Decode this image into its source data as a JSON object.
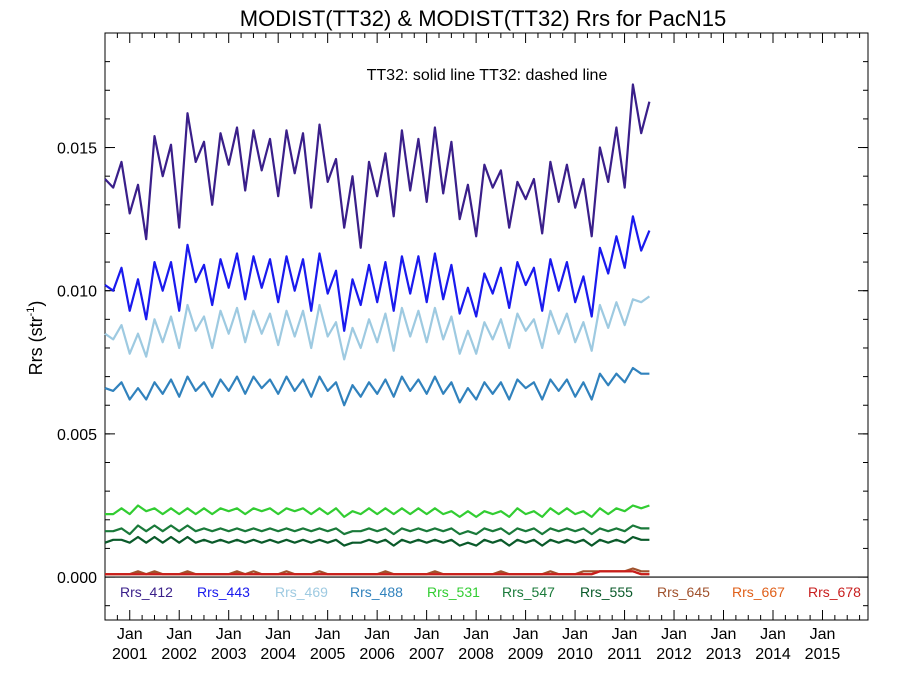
{
  "chart_data": {
    "type": "line",
    "title": "MODIST(TT32) & MODIST(TT32)  Rrs for PacN15",
    "annotation": "TT32: solid line   TT32: dashed line",
    "ylabel": "Rrs (str",
    "ylabel_sup": "-1",
    "ylabel_close": ")",
    "xlabel": "",
    "xlim": [
      2000.5,
      2015.92
    ],
    "ylim": [
      -0.0015,
      0.019
    ],
    "y_ticks": [
      0.0,
      0.005,
      0.01,
      0.015
    ],
    "y_tick_labels": [
      "0.000",
      "0.005",
      "0.010",
      "0.015"
    ],
    "x_tick_top": "Jan",
    "x_ticks": [
      2001,
      2002,
      2003,
      2004,
      2005,
      2006,
      2007,
      2008,
      2009,
      2010,
      2011,
      2012,
      2013,
      2014,
      2015
    ],
    "x_tick_labels": [
      "2001",
      "2002",
      "2003",
      "2004",
      "2005",
      "2006",
      "2007",
      "2008",
      "2009",
      "2010",
      "2011",
      "2012",
      "2013",
      "2014",
      "2015"
    ],
    "series": [
      {
        "name": "Rrs_412",
        "color": "#3a1f8a",
        "x_start": 2000.5,
        "x_step": 0.1667,
        "values": [
          0.0139,
          0.0136,
          0.0145,
          0.0127,
          0.0137,
          0.0118,
          0.0154,
          0.014,
          0.0151,
          0.0122,
          0.0162,
          0.0145,
          0.0152,
          0.013,
          0.0155,
          0.0144,
          0.0157,
          0.0135,
          0.0156,
          0.0142,
          0.0153,
          0.0133,
          0.0156,
          0.0141,
          0.0155,
          0.0129,
          0.0158,
          0.0138,
          0.0146,
          0.0122,
          0.014,
          0.0115,
          0.0145,
          0.0133,
          0.0148,
          0.0126,
          0.0156,
          0.0135,
          0.0153,
          0.0131,
          0.0157,
          0.0134,
          0.0152,
          0.0125,
          0.0137,
          0.0119,
          0.0144,
          0.0136,
          0.0142,
          0.0122,
          0.0138,
          0.0132,
          0.0139,
          0.012,
          0.0145,
          0.0131,
          0.0144,
          0.0129,
          0.0139,
          0.0119,
          0.015,
          0.0138,
          0.0157,
          0.0136,
          0.0172,
          0.0155,
          0.0166
        ]
      },
      {
        "name": "Rrs_443",
        "color": "#1a1aee",
        "x_start": 2000.5,
        "x_step": 0.1667,
        "values": [
          0.0102,
          0.01,
          0.0108,
          0.0093,
          0.0104,
          0.009,
          0.011,
          0.01,
          0.011,
          0.0093,
          0.0116,
          0.0103,
          0.0109,
          0.0095,
          0.0111,
          0.0101,
          0.0113,
          0.0097,
          0.0112,
          0.0101,
          0.0111,
          0.0096,
          0.0112,
          0.01,
          0.0111,
          0.0093,
          0.0113,
          0.0099,
          0.0107,
          0.0086,
          0.0104,
          0.0095,
          0.0109,
          0.0096,
          0.011,
          0.0093,
          0.0112,
          0.0099,
          0.0112,
          0.0096,
          0.0113,
          0.0097,
          0.0109,
          0.0092,
          0.0101,
          0.0091,
          0.0106,
          0.0099,
          0.0108,
          0.0094,
          0.011,
          0.0102,
          0.0108,
          0.0093,
          0.0111,
          0.01,
          0.011,
          0.0096,
          0.0105,
          0.0091,
          0.0115,
          0.0106,
          0.0119,
          0.0108,
          0.0126,
          0.0114,
          0.0121
        ]
      },
      {
        "name": "Rrs_469",
        "color": "#9ecae1",
        "x_start": 2000.5,
        "x_step": 0.1667,
        "values": [
          0.0085,
          0.0083,
          0.0088,
          0.0078,
          0.0085,
          0.0077,
          0.009,
          0.0082,
          0.0091,
          0.008,
          0.0095,
          0.0086,
          0.0091,
          0.008,
          0.0093,
          0.0085,
          0.0094,
          0.0082,
          0.0093,
          0.0085,
          0.0092,
          0.0081,
          0.0093,
          0.0084,
          0.0093,
          0.008,
          0.0095,
          0.0084,
          0.0089,
          0.0076,
          0.0087,
          0.008,
          0.009,
          0.0082,
          0.0092,
          0.0079,
          0.0094,
          0.0084,
          0.0093,
          0.0082,
          0.0094,
          0.0083,
          0.0091,
          0.0078,
          0.0086,
          0.0078,
          0.0089,
          0.0083,
          0.009,
          0.008,
          0.0092,
          0.0086,
          0.009,
          0.008,
          0.0093,
          0.0085,
          0.0092,
          0.0082,
          0.0089,
          0.0079,
          0.0095,
          0.0087,
          0.0096,
          0.0088,
          0.0097,
          0.0096,
          0.0098
        ]
      },
      {
        "name": "Rrs_488",
        "color": "#3182bd",
        "x_start": 2000.5,
        "x_step": 0.1667,
        "values": [
          0.0066,
          0.0065,
          0.0068,
          0.0062,
          0.0066,
          0.0062,
          0.0068,
          0.0064,
          0.0069,
          0.0063,
          0.007,
          0.0065,
          0.0068,
          0.0063,
          0.0069,
          0.0065,
          0.007,
          0.0064,
          0.007,
          0.0066,
          0.0069,
          0.0064,
          0.007,
          0.0065,
          0.0069,
          0.0063,
          0.007,
          0.0065,
          0.0068,
          0.006,
          0.0067,
          0.0063,
          0.0068,
          0.0064,
          0.0069,
          0.0063,
          0.007,
          0.0065,
          0.0069,
          0.0064,
          0.007,
          0.0064,
          0.0068,
          0.0061,
          0.0066,
          0.0062,
          0.0068,
          0.0064,
          0.0068,
          0.0062,
          0.0069,
          0.0066,
          0.0068,
          0.0062,
          0.0069,
          0.0065,
          0.0069,
          0.0063,
          0.0068,
          0.0062,
          0.0071,
          0.0067,
          0.0071,
          0.0068,
          0.0073,
          0.0071,
          0.0071
        ]
      },
      {
        "name": "Rrs_531",
        "color": "#32cd32",
        "x_start": 2000.5,
        "x_step": 0.1667,
        "values": [
          0.0022,
          0.0022,
          0.0024,
          0.0022,
          0.0025,
          0.0023,
          0.0024,
          0.0022,
          0.0024,
          0.0022,
          0.0024,
          0.0022,
          0.0024,
          0.0022,
          0.0024,
          0.0023,
          0.0024,
          0.0022,
          0.0024,
          0.0023,
          0.0024,
          0.0022,
          0.0024,
          0.0023,
          0.0024,
          0.0022,
          0.0024,
          0.0022,
          0.0024,
          0.0021,
          0.0023,
          0.0022,
          0.0024,
          0.0022,
          0.0024,
          0.0022,
          0.0024,
          0.0022,
          0.0024,
          0.0022,
          0.0024,
          0.0022,
          0.0023,
          0.0021,
          0.0023,
          0.0021,
          0.0023,
          0.0022,
          0.0023,
          0.0021,
          0.0024,
          0.0022,
          0.0023,
          0.0021,
          0.0024,
          0.0022,
          0.0024,
          0.0022,
          0.0023,
          0.0021,
          0.0024,
          0.0022,
          0.0024,
          0.0023,
          0.0025,
          0.0024,
          0.0025
        ]
      },
      {
        "name": "Rrs_547",
        "color": "#1a7a3a",
        "x_start": 2000.5,
        "x_step": 0.1667,
        "values": [
          0.0016,
          0.0016,
          0.0017,
          0.0015,
          0.0018,
          0.0016,
          0.0018,
          0.0016,
          0.0018,
          0.0016,
          0.0018,
          0.0016,
          0.0017,
          0.0016,
          0.0017,
          0.0016,
          0.0017,
          0.0016,
          0.0017,
          0.0016,
          0.0017,
          0.0016,
          0.0017,
          0.0016,
          0.0017,
          0.0016,
          0.0017,
          0.0016,
          0.0017,
          0.0015,
          0.0016,
          0.0016,
          0.0017,
          0.0016,
          0.0017,
          0.0015,
          0.0017,
          0.0016,
          0.0017,
          0.0016,
          0.0017,
          0.0016,
          0.0017,
          0.0015,
          0.0016,
          0.0015,
          0.0017,
          0.0016,
          0.0017,
          0.0015,
          0.0017,
          0.0016,
          0.0017,
          0.0015,
          0.0017,
          0.0016,
          0.0017,
          0.0016,
          0.0017,
          0.0015,
          0.0017,
          0.0016,
          0.0017,
          0.0016,
          0.0018,
          0.0017,
          0.0017
        ]
      },
      {
        "name": "Rrs_555",
        "color": "#0a5a2a",
        "x_start": 2000.5,
        "x_step": 0.1667,
        "values": [
          0.0012,
          0.0013,
          0.0013,
          0.0012,
          0.0014,
          0.0012,
          0.0014,
          0.0012,
          0.0014,
          0.0012,
          0.0014,
          0.0012,
          0.0013,
          0.0012,
          0.0013,
          0.0012,
          0.0013,
          0.0012,
          0.0013,
          0.0012,
          0.0013,
          0.0012,
          0.0013,
          0.0012,
          0.0013,
          0.0012,
          0.0013,
          0.0012,
          0.0013,
          0.0011,
          0.0012,
          0.0012,
          0.0013,
          0.0012,
          0.0013,
          0.0011,
          0.0013,
          0.0012,
          0.0013,
          0.0012,
          0.0013,
          0.0012,
          0.0013,
          0.0011,
          0.0012,
          0.0011,
          0.0013,
          0.0012,
          0.0013,
          0.0011,
          0.0013,
          0.0012,
          0.0013,
          0.0011,
          0.0013,
          0.0012,
          0.0013,
          0.0012,
          0.0013,
          0.0011,
          0.0013,
          0.0012,
          0.0013,
          0.0012,
          0.0014,
          0.0013,
          0.0013
        ]
      },
      {
        "name": "Rrs_645",
        "color": "#a0522d",
        "x_start": 2000.5,
        "x_step": 0.1667,
        "values": [
          0.0001,
          0.0001,
          0.0001,
          0.0001,
          0.0002,
          0.0001,
          0.0002,
          0.0001,
          0.0001,
          0.0001,
          0.0002,
          0.0001,
          0.0001,
          0.0001,
          0.0001,
          0.0001,
          0.0002,
          0.0001,
          0.0002,
          0.0001,
          0.0001,
          0.0001,
          0.0002,
          0.0001,
          0.0001,
          0.0001,
          0.0002,
          0.0001,
          0.0001,
          0.0001,
          0.0001,
          0.0001,
          0.0001,
          0.0001,
          0.0002,
          0.0001,
          0.0001,
          0.0001,
          0.0001,
          0.0001,
          0.0002,
          0.0001,
          0.0001,
          0.0001,
          0.0001,
          0.0001,
          0.0001,
          0.0001,
          0.0002,
          0.0001,
          0.0001,
          0.0001,
          0.0001,
          0.0001,
          0.0002,
          0.0001,
          0.0001,
          0.0001,
          0.0002,
          0.0002,
          0.0002,
          0.0002,
          0.0002,
          0.0002,
          0.0003,
          0.0002,
          0.0002
        ]
      },
      {
        "name": "Rrs_667",
        "color": "#e0601a",
        "x_start": 2000.5,
        "x_step": 0.1667,
        "values": [
          0.0001,
          0.0001,
          0.0001,
          0.0001,
          0.0001,
          0.0001,
          0.0001,
          0.0001,
          0.0001,
          0.0001,
          0.0001,
          0.0001,
          0.0001,
          0.0001,
          0.0001,
          0.0001,
          0.0001,
          0.0001,
          0.0001,
          0.0001,
          0.0001,
          0.0001,
          0.0001,
          0.0001,
          0.0001,
          0.0001,
          0.0001,
          0.0001,
          0.0001,
          0.0001,
          0.0001,
          0.0001,
          0.0001,
          0.0001,
          0.0001,
          0.0001,
          0.0001,
          0.0001,
          0.0001,
          0.0001,
          0.0001,
          0.0001,
          0.0001,
          0.0001,
          0.0001,
          0.0001,
          0.0001,
          0.0001,
          0.0001,
          0.0001,
          0.0001,
          0.0001,
          0.0001,
          0.0001,
          0.0001,
          0.0001,
          0.0001,
          0.0001,
          0.0001,
          0.0001,
          0.0002,
          0.0002,
          0.0002,
          0.0002,
          0.0002,
          0.0001,
          0.0001
        ]
      },
      {
        "name": "Rrs_678",
        "color": "#c81e1e",
        "x_start": 2000.5,
        "x_step": 0.1667,
        "values": [
          0.0001,
          0.0001,
          0.0001,
          0.0001,
          0.0001,
          0.0001,
          0.0001,
          0.0001,
          0.0001,
          0.0001,
          0.0001,
          0.0001,
          0.0001,
          0.0001,
          0.0001,
          0.0001,
          0.0001,
          0.0001,
          0.0001,
          0.0001,
          0.0001,
          0.0001,
          0.0001,
          0.0001,
          0.0001,
          0.0001,
          0.0001,
          0.0001,
          0.0001,
          0.0001,
          0.0001,
          0.0001,
          0.0001,
          0.0001,
          0.0001,
          0.0001,
          0.0001,
          0.0001,
          0.0001,
          0.0001,
          0.0001,
          0.0001,
          0.0001,
          0.0001,
          0.0001,
          0.0001,
          0.0001,
          0.0001,
          0.0001,
          0.0001,
          0.0001,
          0.0001,
          0.0001,
          0.0001,
          0.0001,
          0.0001,
          0.0001,
          0.0001,
          0.0001,
          0.0001,
          0.0002,
          0.0002,
          0.0002,
          0.0002,
          0.0002,
          0.0001,
          0.0001
        ]
      }
    ],
    "zero_line": true,
    "grid": false,
    "legend_placement": "bottom inside plot"
  }
}
